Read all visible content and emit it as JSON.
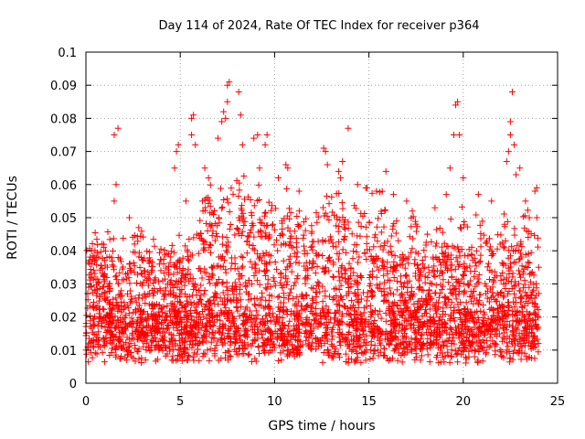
{
  "chart_data": {
    "type": "scatter",
    "title": "Day 114 of 2024, Rate Of TEC Index for receiver p364",
    "xlabel": "GPS time / hours",
    "ylabel": "ROTI / TECUs",
    "xlim": [
      0,
      25
    ],
    "ylim": [
      0,
      0.1
    ],
    "xticks": [
      0,
      5,
      10,
      15,
      20,
      25
    ],
    "xtick_labels": [
      "0",
      "5",
      "10",
      "15",
      "20",
      "25"
    ],
    "yticks": [
      0,
      0.01,
      0.02,
      0.03,
      0.04,
      0.05,
      0.06,
      0.07,
      0.08,
      0.09,
      0.1
    ],
    "ytick_labels": [
      "0",
      "0.01",
      "0.02",
      "0.03",
      "0.04",
      "0.05",
      "0.06",
      "0.07",
      "0.08",
      "0.09",
      "0.1"
    ],
    "grid": true,
    "marker": "+",
    "marker_color": "#ff0000",
    "x_data_range": [
      0,
      24
    ],
    "series": [
      {
        "name": "ROTI",
        "points": [
          [
            0.1,
            0.027
          ],
          [
            0.2,
            0.036
          ],
          [
            0.3,
            0.04
          ],
          [
            0.9,
            0.029
          ],
          [
            1.0,
            0.033
          ],
          [
            1.5,
            0.075
          ],
          [
            1.7,
            0.077
          ],
          [
            1.6,
            0.06
          ],
          [
            1.5,
            0.055
          ],
          [
            2.3,
            0.05
          ],
          [
            2.8,
            0.047
          ],
          [
            4.8,
            0.07
          ],
          [
            4.9,
            0.072
          ],
          [
            4.7,
            0.065
          ],
          [
            5.3,
            0.055
          ],
          [
            5.6,
            0.08
          ],
          [
            5.7,
            0.081
          ],
          [
            5.6,
            0.075
          ],
          [
            5.8,
            0.072
          ],
          [
            6.3,
            0.065
          ],
          [
            6.5,
            0.062
          ],
          [
            7.0,
            0.074
          ],
          [
            7.2,
            0.079
          ],
          [
            7.3,
            0.082
          ],
          [
            7.5,
            0.09
          ],
          [
            7.6,
            0.091
          ],
          [
            7.5,
            0.085
          ],
          [
            7.4,
            0.08
          ],
          [
            8.1,
            0.088
          ],
          [
            8.2,
            0.081
          ],
          [
            8.3,
            0.072
          ],
          [
            8.9,
            0.074
          ],
          [
            9.1,
            0.075
          ],
          [
            9.2,
            0.065
          ],
          [
            9.5,
            0.072
          ],
          [
            9.6,
            0.075
          ],
          [
            10.6,
            0.066
          ],
          [
            10.7,
            0.065
          ],
          [
            10.2,
            0.062
          ],
          [
            11.3,
            0.058
          ],
          [
            12.6,
            0.071
          ],
          [
            12.7,
            0.07
          ],
          [
            12.8,
            0.066
          ],
          [
            13.4,
            0.064
          ],
          [
            13.6,
            0.067
          ],
          [
            13.9,
            0.077
          ],
          [
            13.5,
            0.062
          ],
          [
            14.4,
            0.06
          ],
          [
            14.9,
            0.059
          ],
          [
            15.4,
            0.058
          ],
          [
            15.9,
            0.064
          ],
          [
            16.3,
            0.057
          ],
          [
            17.0,
            0.055
          ],
          [
            17.3,
            0.052
          ],
          [
            18.5,
            0.053
          ],
          [
            19.1,
            0.057
          ],
          [
            19.3,
            0.065
          ],
          [
            19.5,
            0.075
          ],
          [
            19.6,
            0.084
          ],
          [
            19.7,
            0.085
          ],
          [
            19.8,
            0.075
          ],
          [
            20.0,
            0.062
          ],
          [
            20.8,
            0.057
          ],
          [
            21.5,
            0.055
          ],
          [
            22.3,
            0.067
          ],
          [
            22.4,
            0.07
          ],
          [
            22.5,
            0.079
          ],
          [
            22.6,
            0.088
          ],
          [
            22.5,
            0.075
          ],
          [
            22.7,
            0.072
          ],
          [
            22.8,
            0.063
          ],
          [
            23.0,
            0.065
          ],
          [
            23.3,
            0.055
          ],
          [
            23.5,
            0.05
          ],
          [
            23.8,
            0.058
          ],
          [
            23.9,
            0.059
          ],
          [
            23.9,
            0.05
          ],
          [
            24.0,
            0.035
          ]
        ]
      }
    ]
  }
}
